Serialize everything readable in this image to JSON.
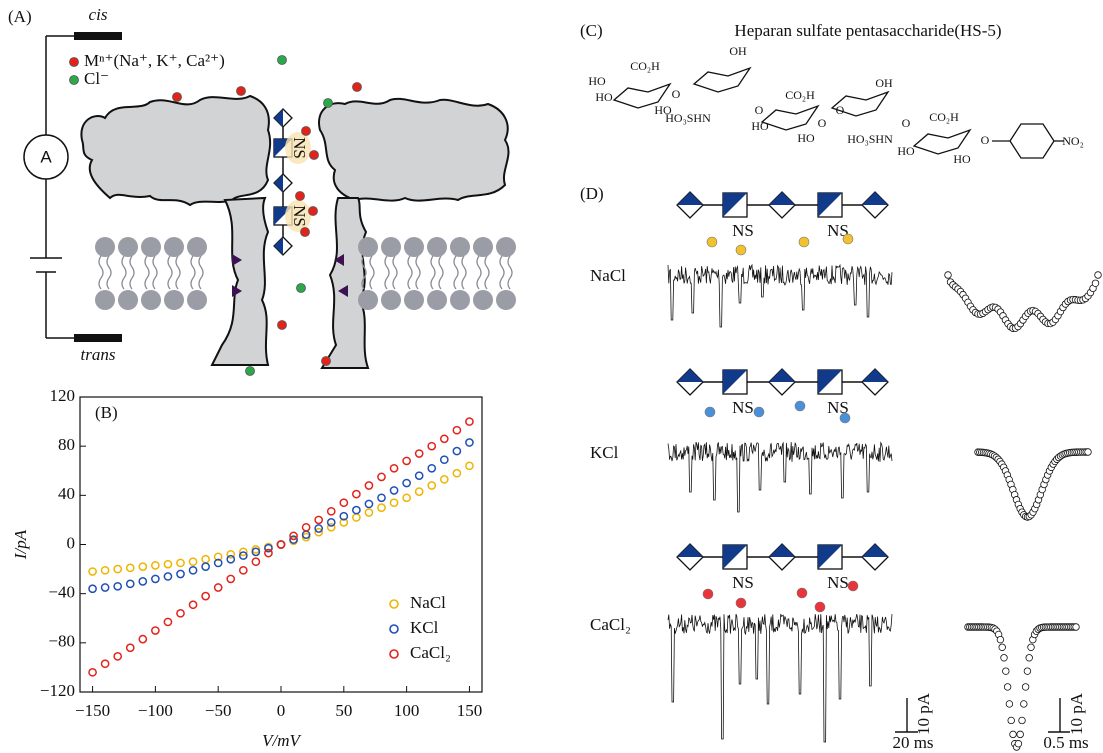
{
  "panel_a": {
    "label": "(A)",
    "cis": "cis",
    "trans": "trans",
    "ammeter": "A",
    "legend": [
      "Mⁿ⁺(Na⁺, K⁺, Ca²⁺)",
      "Cl⁻"
    ],
    "ns_labels": [
      "NS",
      "NS"
    ]
  },
  "chart_data": {
    "type": "scatter",
    "panel_label": "(B)",
    "x_label": "V/mV",
    "y_label": "I/pA",
    "x": [
      -150,
      -140,
      -130,
      -120,
      -110,
      -100,
      -90,
      -80,
      -70,
      -60,
      -50,
      -40,
      -30,
      -20,
      -10,
      0,
      10,
      20,
      30,
      40,
      50,
      60,
      70,
      80,
      90,
      100,
      110,
      120,
      130,
      140,
      150
    ],
    "series": [
      {
        "name": "NaCl",
        "color": "#f0b400",
        "values": [
          -22,
          -21,
          -20,
          -19,
          -18,
          -17,
          -16,
          -15,
          -14,
          -12,
          -10,
          -8,
          -6,
          -4,
          -2,
          0,
          3,
          6,
          10,
          14,
          18,
          22,
          26,
          30,
          34,
          38,
          43,
          48,
          53,
          58,
          64
        ]
      },
      {
        "name": "KCl",
        "color": "#1f4fb4",
        "values": [
          -36,
          -35,
          -34,
          -32,
          -30,
          -28,
          -26,
          -24,
          -21,
          -18,
          -15,
          -12,
          -9,
          -6,
          -3,
          0,
          4,
          8,
          13,
          18,
          23,
          28,
          33,
          38,
          44,
          50,
          56,
          62,
          69,
          76,
          83
        ]
      },
      {
        "name": "CaCl₂",
        "color": "#e2231a",
        "values": [
          -104,
          -97,
          -91,
          -84,
          -77,
          -70,
          -63,
          -56,
          -49,
          -42,
          -35,
          -28,
          -21,
          -14,
          -7,
          0,
          7,
          14,
          20,
          27,
          34,
          41,
          48,
          55,
          62,
          68,
          74,
          80,
          86,
          93,
          100
        ]
      }
    ],
    "xlim": [
      -160,
      160
    ],
    "ylim": [
      -120,
      120
    ],
    "xticks": [
      {
        "value": -150,
        "label": "−150"
      },
      {
        "value": -100,
        "label": "−100"
      },
      {
        "value": -50,
        "label": "−50"
      },
      0,
      50,
      100,
      150
    ],
    "yticks": [
      {
        "value": -120,
        "label": "−120"
      },
      {
        "value": -80,
        "label": "−80"
      },
      {
        "value": -40,
        "label": "−40"
      },
      0,
      40,
      80,
      120
    ],
    "legend_position": "lower right",
    "grid": false
  },
  "panel_c": {
    "label": "(C)",
    "title": "Heparan sulfate pentasaccharide(HS-5)",
    "structure_labels": [
      "OH",
      "CO₂H",
      "HO",
      "HO",
      "O",
      "HO",
      "HO₃SHN",
      "CO₂H",
      "OH",
      "O",
      "HO",
      "HO",
      "O",
      "HO₃SHN",
      "O",
      "CO₂H",
      "O",
      "HO",
      "HO",
      "O",
      "NO₂"
    ]
  },
  "panel_d": {
    "label": "(D)",
    "rows": [
      {
        "electrolyte": "NaCl",
        "ns_labels": [
          "NS",
          "NS"
        ]
      },
      {
        "electrolyte": "KCl",
        "ns_labels": [
          "NS",
          "NS"
        ]
      },
      {
        "electrolyte": "CaCl₂",
        "ns_labels": [
          "NS",
          "NS"
        ]
      }
    ],
    "scale_bars": [
      {
        "current": "10 pA",
        "time": "20 ms"
      },
      {
        "current": "10 pA",
        "time": "0.5 ms"
      }
    ]
  }
}
